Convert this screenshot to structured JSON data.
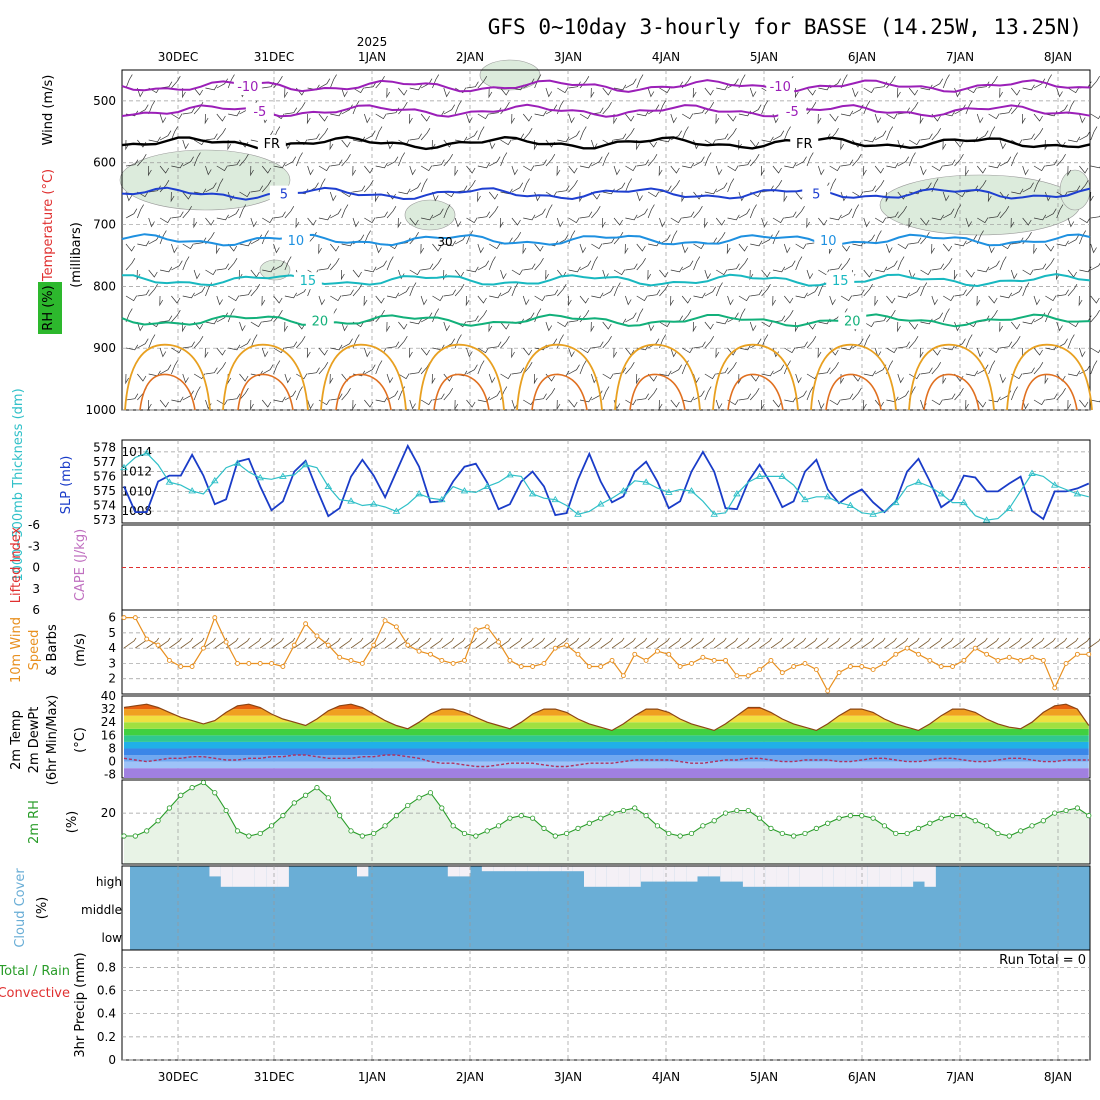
{
  "title": "GFS 0~10day 3-hourly for BASSE (14.25W, 13.25N)",
  "year_label": "2025",
  "run_total_label": "Run Total = 0",
  "colors": {
    "temp_neg10": "#9b1fb8",
    "temp_neg5": "#9b1fb8",
    "temp_fr": "#000000",
    "temp_5": "#1e3fd0",
    "temp_10": "#1e90e0",
    "temp_15": "#18b8c0",
    "temp_20": "#12b07a",
    "temp_25": "#e8a020",
    "temp_30": "#e07020",
    "slp": "#1a3cc8",
    "thickness": "#30c0c8",
    "wind10": "#e89020",
    "rh": "#2a9d2a",
    "rh_fill": "#e8f3e6",
    "cloud": "#6aaed6",
    "li": "#e03030"
  },
  "chart_data": [
    {
      "type": "contour",
      "panel": "upper-air",
      "ylabel_parts": [
        "RH (%)",
        "Temperature (°C)",
        "Wind (m/s)"
      ],
      "ylabel2": "(millibars)",
      "y_ticks": [
        "500",
        "600",
        "700",
        "800",
        "900",
        "1000"
      ],
      "y_values": [
        500,
        600,
        700,
        800,
        900,
        1000
      ],
      "ylim": [
        450,
        1000
      ],
      "x_days": [
        "30DEC",
        "31DEC",
        "1JAN",
        "2JAN",
        "3JAN",
        "4JAN",
        "5JAN",
        "6JAN",
        "7JAN",
        "8JAN"
      ],
      "contours": [
        {
          "label": "-10",
          "level_mb": 476,
          "color": "#9b1fb8"
        },
        {
          "label": "-5",
          "level_mb": 516,
          "color": "#9b1fb8"
        },
        {
          "label": "FR",
          "level_mb": 568,
          "color": "#000000"
        },
        {
          "label": "5",
          "level_mb": 650,
          "color": "#1e3fd0"
        },
        {
          "label": "10",
          "level_mb": 725,
          "color": "#1e90e0"
        },
        {
          "label": "15",
          "level_mb": 790,
          "color": "#18b8c0"
        },
        {
          "label": "20",
          "level_mb": 855,
          "color": "#12b07a"
        }
      ],
      "rh_label": "30"
    },
    {
      "type": "line",
      "panel": "slp-thickness",
      "ylabel_left": "1000~500mb Thickness (dm)",
      "ylabel_right": "SLP (mb)",
      "y_left_ticks": [
        "578",
        "577",
        "576",
        "575",
        "574",
        "573"
      ],
      "y_left_values": [
        578,
        577,
        576,
        575,
        574,
        573
      ],
      "y_right_ticks": [
        "1014",
        "1012",
        "1010",
        "1008"
      ],
      "y_right_values": [
        1014,
        1012,
        1010,
        1008
      ],
      "ylim_left": [
        572.8,
        578.5
      ],
      "ylim_right": [
        1006.8,
        1015.2
      ],
      "series": [
        {
          "name": "SLP",
          "axis": "right",
          "color": "#1a3cc8",
          "values": [
            1010.5,
            1007.9,
            1007.9,
            1011.0,
            1011.6,
            1011.6,
            1013.7,
            1011.6,
            1008.7,
            1009.2,
            1013.0,
            1013.3,
            1010.5,
            1008.1,
            1009.0,
            1012.0,
            1013.1,
            1010.2,
            1007.5,
            1008.3,
            1011.5,
            1013.2,
            1011.6,
            1009.4,
            1012.0,
            1014.6,
            1012.5,
            1008.9,
            1009.0,
            1011.0,
            1012.5,
            1012.8,
            1010.9,
            1008.2,
            1008.7,
            1011.0,
            1012.0,
            1010.5,
            1007.6,
            1007.8,
            1011.2,
            1013.8,
            1011.0,
            1008.9,
            1009.5,
            1012.0,
            1013.0,
            1011.0,
            1008.3,
            1009.0,
            1012.0,
            1014.0,
            1012.0,
            1008.3,
            1008.2,
            1011.0,
            1012.7,
            1010.8,
            1008.4,
            1009.0,
            1012.0,
            1013.2,
            1010.2,
            1008.8,
            1009.6,
            1010.2,
            1008.9,
            1007.9,
            1009.0,
            1012.0,
            1013.3,
            1011.0,
            1008.4,
            1009.2,
            1011.6,
            1011.4,
            1010.0,
            1010.0,
            1010.8,
            1011.5,
            1008.0,
            1007.2,
            1010.0,
            1010.0,
            1010.3,
            1010.8
          ]
        },
        {
          "name": "Thickness",
          "axis": "left",
          "color": "#30c0c8",
          "values": [
            576.6,
            577.3,
            577.6,
            576.8,
            575.6,
            575.4,
            575.0,
            574.8,
            575.7,
            576.6,
            576.9,
            576.3,
            575.9,
            575.8,
            576.0,
            576.1,
            576.8,
            576.6,
            575.3,
            574.4,
            574.3,
            574.0,
            574.1,
            573.9,
            573.6,
            574.1,
            574.8,
            574.5,
            574.4,
            575.3,
            575.0,
            574.9,
            575.3,
            575.6,
            576.1,
            576.0,
            574.8,
            574.5,
            574.4,
            574.0,
            573.4,
            573.6,
            574.1,
            574.5,
            575.0,
            575.7,
            575.6,
            575.2,
            574.9,
            575.1,
            575.0,
            574.3,
            573.4,
            573.5,
            574.8,
            575.6,
            576.0,
            576.0,
            576.0,
            575.4,
            574.4,
            574.6,
            574.6,
            574.2,
            574.0,
            573.5,
            573.4,
            573.6,
            574.2,
            575.3,
            575.6,
            575.3,
            574.8,
            574.2,
            574.2,
            573.3,
            573.0,
            573.1,
            573.8,
            575.0,
            576.2,
            576.0,
            575.4,
            575.1,
            574.8,
            574.6
          ]
        }
      ]
    },
    {
      "type": "line",
      "panel": "lifted-index",
      "ylabel_left": "Lifted Index",
      "ylabel_right": "CAPE (J/kg)",
      "y_ticks": [
        "-6",
        "-3",
        "0",
        "3",
        "6"
      ],
      "y_values": [
        -6,
        -3,
        0,
        3,
        6
      ],
      "ylim": [
        -6,
        6
      ],
      "series": [
        {
          "name": "Lifted Index",
          "color": "#e03030",
          "values": [
            0,
            0
          ]
        }
      ]
    },
    {
      "type": "line",
      "panel": "wind10m",
      "ylabel_left": "10m Wind Speed & Barbs",
      "ylabel_right": "(m/s)",
      "y_ticks": [
        "6",
        "5",
        "4",
        "3",
        "2"
      ],
      "y_values": [
        6,
        5,
        4,
        3,
        2
      ],
      "ylim": [
        1,
        6.5
      ],
      "series": [
        {
          "name": "10m Wind Speed",
          "color": "#e89020",
          "values": [
            6.0,
            6.0,
            4.6,
            4.2,
            3.2,
            2.8,
            2.8,
            4.0,
            6.0,
            4.4,
            3.0,
            3.0,
            3.0,
            3.0,
            2.8,
            4.2,
            5.6,
            4.8,
            4.2,
            3.4,
            3.2,
            3.0,
            4.2,
            5.8,
            5.4,
            4.2,
            3.8,
            3.6,
            3.2,
            3.0,
            3.2,
            5.2,
            5.4,
            4.4,
            3.2,
            2.8,
            2.8,
            3.0,
            4.0,
            4.2,
            3.6,
            2.8,
            2.8,
            3.2,
            2.2,
            3.6,
            3.2,
            3.8,
            3.6,
            2.8,
            3.0,
            3.4,
            3.2,
            3.2,
            2.2,
            2.2,
            2.6,
            3.2,
            2.4,
            2.8,
            3.0,
            2.6,
            1.2,
            2.4,
            2.8,
            2.8,
            2.6,
            3.0,
            3.6,
            4.0,
            3.6,
            3.2,
            2.8,
            2.8,
            3.2,
            4.0,
            3.6,
            3.2,
            3.4,
            3.2,
            3.4,
            3.2,
            1.4,
            3.0,
            3.6,
            3.6
          ]
        }
      ]
    },
    {
      "type": "area",
      "panel": "temp-dewpt",
      "ylabel_left": "2m Temp 2m DewPt (6hr Min/Max)",
      "ylabel_right": "(°C)",
      "y_ticks": [
        "40",
        "32",
        "24",
        "16",
        "8",
        "0",
        "-8"
      ],
      "y_values": [
        40,
        32,
        24,
        16,
        8,
        0,
        -8
      ],
      "ylim": [
        -10,
        40
      ],
      "series": [
        {
          "name": "2m Temp",
          "color": "#8b4513",
          "values": [
            33,
            34,
            35,
            33,
            30,
            27,
            25,
            23,
            25,
            30,
            34,
            35,
            33,
            29,
            26,
            24,
            22,
            26,
            31,
            34,
            35,
            33,
            29,
            25,
            22,
            20,
            24,
            29,
            32,
            32,
            30,
            27,
            24,
            22,
            20,
            24,
            29,
            32,
            32,
            30,
            26,
            23,
            21,
            19,
            23,
            28,
            32,
            32,
            30,
            26,
            23,
            21,
            19,
            23,
            28,
            33,
            33,
            30,
            26,
            23,
            21,
            19,
            23,
            28,
            32,
            32,
            30,
            26,
            23,
            21,
            19,
            23,
            28,
            32,
            32,
            30,
            26,
            23,
            21,
            20,
            24,
            30,
            34,
            35,
            32,
            22
          ]
        },
        {
          "name": "2m DewPt",
          "color": "#b03060",
          "values": [
            2,
            1,
            0,
            1,
            2,
            2,
            3,
            3,
            2,
            1,
            1,
            2,
            2,
            3,
            3,
            4,
            4,
            3,
            2,
            2,
            2,
            3,
            3,
            4,
            4,
            3,
            2,
            0,
            -1,
            -1,
            -2,
            -3,
            -3,
            -2,
            -1,
            -1,
            -1,
            -2,
            -3,
            -3,
            -2,
            -1,
            -1,
            -1,
            0,
            1,
            1,
            1,
            1,
            0,
            -1,
            -1,
            0,
            1,
            1,
            2,
            2,
            1,
            0,
            0,
            1,
            1,
            1,
            0,
            0,
            1,
            2,
            2,
            1,
            0,
            0,
            1,
            2,
            2,
            1,
            0,
            0,
            1,
            2,
            2,
            1,
            0,
            0,
            1,
            1,
            1
          ]
        }
      ]
    },
    {
      "type": "area",
      "panel": "rh2m",
      "ylabel_left": "2m RH",
      "ylabel_right": "(%)",
      "y_ticks": [
        "20"
      ],
      "y_values": [
        20
      ],
      "ylim": [
        0,
        33
      ],
      "series": [
        {
          "name": "2m RH",
          "color": "#2a9d2a",
          "values": [
            11,
            11,
            13,
            17,
            22,
            27,
            30,
            32,
            28,
            21,
            13,
            11,
            12,
            15,
            19,
            24,
            27,
            30,
            26,
            19,
            13,
            11,
            12,
            15,
            19,
            23,
            26,
            28,
            22,
            15,
            12,
            11,
            13,
            15,
            18,
            19,
            18,
            14,
            11,
            12,
            14,
            16,
            18,
            20,
            21,
            22,
            19,
            15,
            12,
            11,
            12,
            15,
            17,
            20,
            21,
            21,
            18,
            14,
            12,
            11,
            12,
            14,
            16,
            18,
            19,
            19,
            18,
            15,
            12,
            12,
            14,
            16,
            18,
            19,
            19,
            17,
            15,
            12,
            11,
            13,
            15,
            17,
            20,
            21,
            22,
            19
          ]
        }
      ]
    },
    {
      "type": "heatmap",
      "panel": "cloud-cover",
      "ylabel_left": "Cloud Cover",
      "ylabel_right": "(%)",
      "y_ticks": [
        "high",
        "middle",
        "low"
      ],
      "series": [
        {
          "name": "high",
          "color": "#6aaed6",
          "values": [
            100,
            100,
            100,
            100,
            100,
            100,
            100,
            60,
            20,
            20,
            20,
            20,
            20,
            20,
            100,
            100,
            100,
            100,
            100,
            100,
            60,
            100,
            100,
            100,
            100,
            100,
            100,
            100,
            60,
            60,
            100,
            80,
            80,
            80,
            80,
            80,
            80,
            80,
            80,
            80,
            20,
            20,
            20,
            20,
            20,
            40,
            40,
            40,
            40,
            40,
            60,
            60,
            40,
            40,
            20,
            20,
            20,
            20,
            20,
            20,
            20,
            20,
            20,
            20,
            20,
            20,
            20,
            20,
            20,
            40,
            20,
            100,
            100,
            100,
            100,
            100,
            100,
            100,
            100,
            100,
            100,
            100,
            100,
            100,
            100,
            100
          ]
        }
      ]
    },
    {
      "type": "bar",
      "panel": "precip",
      "ylabel_left": "Total / Rain Convective",
      "ylabel_right": "3hr Precip (mm)",
      "y_ticks": [
        "0.8",
        "0.6",
        "0.4",
        "0.2",
        "0"
      ],
      "y_values": [
        0.8,
        0.6,
        0.4,
        0.2,
        0
      ],
      "ylim": [
        0,
        0.95
      ],
      "series": [
        {
          "name": "Total",
          "color": "#2a9d2a",
          "values": [
            0
          ]
        }
      ]
    }
  ]
}
